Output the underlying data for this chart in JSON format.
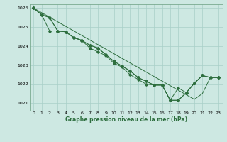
{
  "background_color": "#cde8e2",
  "grid_color": "#a8cfc8",
  "line_color": "#2d6e3e",
  "xlabel": "Graphe pression niveau de la mer (hPa)",
  "ylim": [
    1020.6,
    1026.2
  ],
  "xlim": [
    -0.5,
    23.5
  ],
  "yticks": [
    1021,
    1022,
    1023,
    1024,
    1025,
    1026
  ],
  "xticks": [
    0,
    1,
    2,
    3,
    4,
    5,
    6,
    7,
    8,
    9,
    10,
    11,
    12,
    13,
    14,
    15,
    16,
    17,
    18,
    19,
    20,
    21,
    22,
    23
  ],
  "line1": [
    1026.0,
    1025.65,
    1025.5,
    1024.8,
    1024.75,
    1024.45,
    1024.3,
    1024.05,
    1023.9,
    1023.55,
    1023.2,
    1022.95,
    1022.7,
    1022.35,
    1022.15,
    1021.95,
    1021.95,
    1021.15,
    1021.15,
    1021.55,
    1022.05,
    1022.45,
    1022.35,
    1022.35
  ],
  "line2": [
    1026.0,
    1025.65,
    1024.8,
    1024.8,
    1024.75,
    1024.45,
    1024.3,
    1024.05,
    1023.9,
    1023.55,
    1023.2,
    1022.95,
    1022.7,
    1022.35,
    1022.15,
    1021.95,
    1021.95,
    1021.15,
    1021.15,
    1021.55,
    1022.05,
    1022.45,
    1022.35,
    1022.35
  ],
  "line3": [
    1026.0,
    1025.65,
    1025.5,
    1024.8,
    1024.75,
    1024.45,
    1024.3,
    1023.9,
    1023.7,
    1023.5,
    1023.1,
    1022.9,
    1022.5,
    1022.25,
    1022.0,
    1021.95,
    1021.95,
    1021.15,
    1021.8,
    1021.55,
    1022.05,
    1022.45,
    1022.35,
    1022.35
  ],
  "line_straight": [
    1026.0,
    1025.76,
    1025.52,
    1025.28,
    1025.04,
    1024.8,
    1024.56,
    1024.32,
    1024.08,
    1023.84,
    1023.6,
    1023.36,
    1023.12,
    1022.88,
    1022.64,
    1022.4,
    1022.16,
    1021.92,
    1021.68,
    1021.44,
    1021.2,
    1021.5,
    1022.35,
    1022.35
  ]
}
